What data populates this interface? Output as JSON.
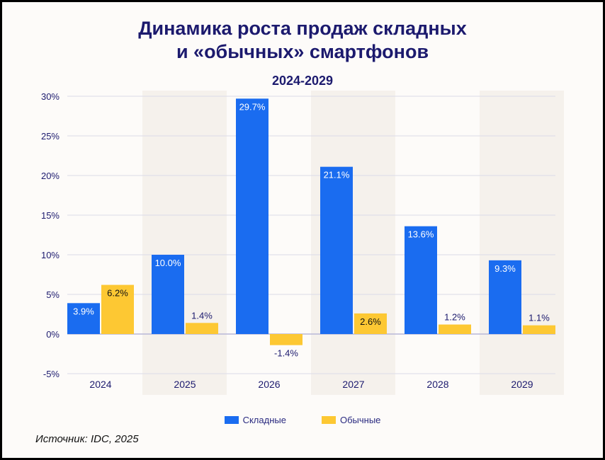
{
  "title_line1": "Динамика роста продаж складных",
  "title_line2": "и «обычных» смартфонов",
  "subtitle": "2024-2029",
  "source": "Источник: IDC, 2025",
  "colors": {
    "foldable": "#1a6cf0",
    "regular": "#fdc833",
    "text": "#1c1a6e",
    "band": "#f5f1ec"
  },
  "chart_data": {
    "type": "bar",
    "categories": [
      "2024",
      "2025",
      "2026",
      "2027",
      "2028",
      "2029"
    ],
    "series": [
      {
        "name": "Складные",
        "values": [
          3.9,
          10.0,
          29.7,
          21.1,
          13.6,
          9.3
        ],
        "labels": [
          "3.9%",
          "10.0%",
          "29.7%",
          "21.1%",
          "13.6%",
          "9.3%"
        ]
      },
      {
        "name": "Обычные",
        "values": [
          6.2,
          1.4,
          -1.4,
          2.6,
          1.2,
          1.1
        ],
        "labels": [
          "6.2%",
          "1.4%",
          "-1.4%",
          "2.6%",
          "1.2%",
          "1.1%"
        ]
      }
    ],
    "ylim": [
      -5,
      30
    ],
    "yticks": [
      -5,
      0,
      5,
      10,
      15,
      20,
      25,
      30
    ],
    "ytick_labels": [
      "-5%",
      "0%",
      "5%",
      "10%",
      "15%",
      "20%",
      "25%",
      "30%"
    ],
    "grid": true,
    "legend_position": "bottom"
  }
}
